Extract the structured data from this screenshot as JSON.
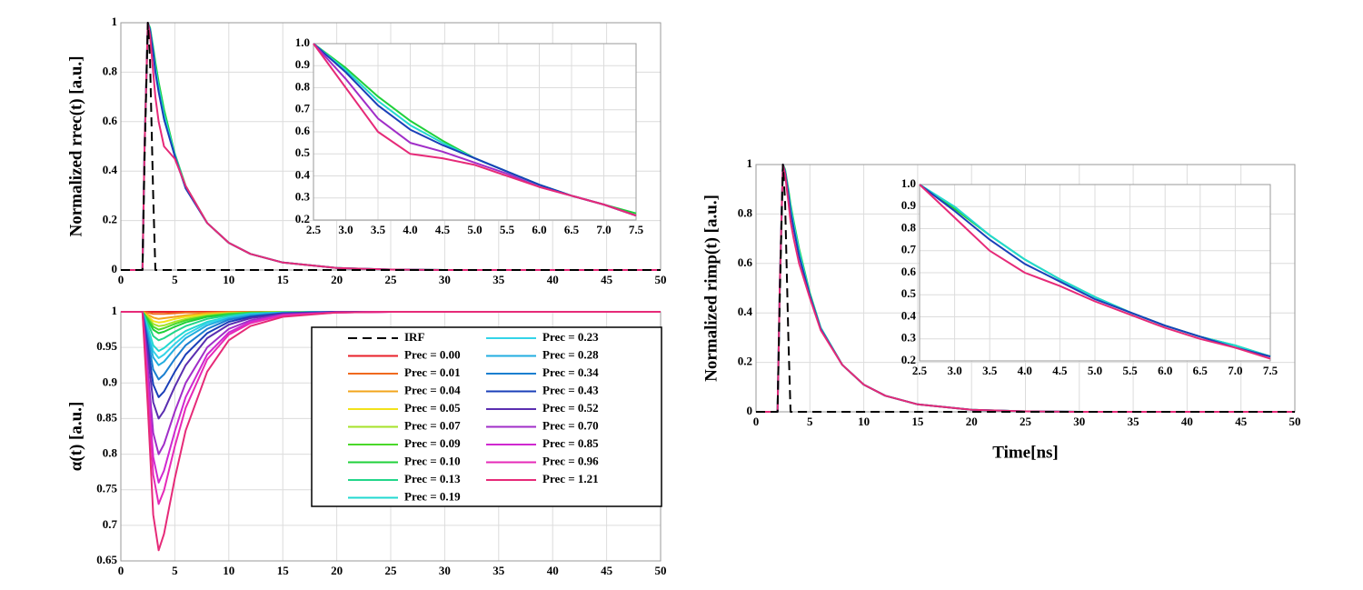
{
  "chart_data": [
    {
      "type": "line",
      "ylabel": "Normalized rrec(t) [a.u.]",
      "grid": true,
      "xlim": [
        0,
        50
      ],
      "xticks": [
        0,
        5,
        10,
        15,
        20,
        25,
        30,
        35,
        40,
        45,
        50
      ],
      "ylim": [
        0,
        1
      ],
      "yticks": [
        0,
        0.2,
        0.4,
        0.6,
        0.8,
        1
      ],
      "x": [
        0,
        2,
        2.2,
        2.5,
        2.7,
        3,
        3.2,
        3.5,
        4,
        5,
        6,
        8,
        10,
        12,
        15,
        20,
        25,
        30,
        50
      ],
      "series": [
        {
          "color": "#1fd03a",
          "values": [
            0,
            0,
            0.5,
            1,
            0.98,
            0.9,
            0.84,
            0.76,
            0.65,
            0.47,
            0.34,
            0.19,
            0.11,
            0.065,
            0.03,
            0.008,
            0.002,
            0,
            0
          ]
        },
        {
          "color": "#22d8d0",
          "values": [
            0,
            0,
            0.5,
            1,
            0.975,
            0.89,
            0.82,
            0.74,
            0.63,
            0.465,
            0.335,
            0.19,
            0.11,
            0.065,
            0.03,
            0.008,
            0.002,
            0,
            0
          ]
        },
        {
          "color": "#1a3fb8",
          "values": [
            0,
            0,
            0.5,
            1,
            0.97,
            0.88,
            0.8,
            0.72,
            0.61,
            0.46,
            0.33,
            0.19,
            0.11,
            0.065,
            0.03,
            0.008,
            0.002,
            0,
            0
          ]
        },
        {
          "color": "#e62a78",
          "values": [
            0,
            0,
            0.5,
            1,
            0.95,
            0.8,
            0.7,
            0.6,
            0.5,
            0.45,
            0.34,
            0.19,
            0.11,
            0.065,
            0.03,
            0.008,
            0.002,
            0,
            0
          ]
        },
        {
          "color": "#000000",
          "dash": true,
          "values": [
            0,
            0,
            0.45,
            1,
            0.85,
            0.3,
            0,
            0,
            0,
            0,
            0,
            0,
            0,
            0,
            0,
            0,
            0,
            0,
            0
          ]
        }
      ]
    },
    {
      "type": "line",
      "grid": true,
      "xlim": [
        2.5,
        7.5
      ],
      "xticks": [
        2.5,
        {
          "value": 3,
          "label": "3.0"
        },
        3.5,
        {
          "value": 4,
          "label": "4.0"
        },
        4.5,
        {
          "value": 5,
          "label": "5.0"
        },
        5.5,
        {
          "value": 6,
          "label": "6.0"
        },
        6.5,
        {
          "value": 7,
          "label": "7.0"
        },
        7.5
      ],
      "ylim": [
        0.2,
        1
      ],
      "yticks": [
        0.2,
        0.3,
        0.4,
        0.5,
        0.6,
        0.7,
        0.8,
        0.9,
        {
          "value": 1,
          "label": "1.0"
        }
      ],
      "x": [
        2.5,
        3,
        3.5,
        4,
        4.5,
        5,
        5.5,
        6,
        6.5,
        7,
        7.5
      ],
      "series": [
        {
          "color": "#1fd03a",
          "values": [
            1,
            0.89,
            0.76,
            0.65,
            0.56,
            0.48,
            0.42,
            0.36,
            0.31,
            0.27,
            0.23
          ]
        },
        {
          "color": "#22d8d0",
          "values": [
            1,
            0.88,
            0.74,
            0.63,
            0.55,
            0.48,
            0.42,
            0.36,
            0.31,
            0.27,
            0.22
          ]
        },
        {
          "color": "#1a3fb8",
          "values": [
            1,
            0.87,
            0.72,
            0.61,
            0.54,
            0.48,
            0.42,
            0.36,
            0.31,
            0.27,
            0.22
          ]
        },
        {
          "color": "#a02ec8",
          "values": [
            1,
            0.84,
            0.66,
            0.55,
            0.51,
            0.46,
            0.41,
            0.35,
            0.31,
            0.27,
            0.22
          ]
        },
        {
          "color": "#e62a78",
          "values": [
            1,
            0.8,
            0.6,
            0.5,
            0.48,
            0.45,
            0.4,
            0.35,
            0.31,
            0.27,
            0.22
          ]
        }
      ]
    },
    {
      "type": "line",
      "ylabel": "α(t) [a.u.]",
      "grid": true,
      "legend": "right",
      "xlim": [
        0,
        50
      ],
      "xticks": [
        0,
        5,
        10,
        15,
        20,
        25,
        30,
        35,
        40,
        45,
        50
      ],
      "ylim": [
        0.65,
        1
      ],
      "yticks": [
        0.65,
        0.7,
        0.75,
        0.8,
        0.85,
        0.9,
        0.95,
        1
      ],
      "x": [
        0,
        2,
        2.5,
        3,
        3.5,
        4,
        5,
        6,
        8,
        10,
        12,
        15,
        20,
        25,
        50
      ],
      "series": [
        {
          "name": "IRF",
          "color": "#000000",
          "dash": true,
          "values": [
            null,
            null,
            null,
            null,
            null,
            null,
            null,
            null,
            null,
            null,
            null,
            null,
            null,
            null,
            null
          ]
        },
        {
          "name": "Prec = 0.00",
          "color": "#e8202a",
          "values": [
            1,
            1,
            1,
            1,
            1,
            1,
            1,
            1,
            1,
            1,
            1,
            1,
            1,
            1,
            1
          ]
        },
        {
          "name": "Prec = 0.01",
          "color": "#f06a1f",
          "values": [
            1,
            1,
            0.999,
            0.997,
            0.997,
            0.997,
            0.998,
            0.999,
            0.999,
            1,
            1,
            1,
            1,
            1,
            1
          ]
        },
        {
          "name": "Prec = 0.04",
          "color": "#f2a51c",
          "values": [
            1,
            1,
            0.996,
            0.992,
            0.99,
            0.991,
            0.993,
            0.995,
            0.998,
            0.999,
            0.999,
            1,
            1,
            1,
            1
          ]
        },
        {
          "name": "Prec = 0.05",
          "color": "#f2e21a",
          "values": [
            1,
            1,
            0.994,
            0.987,
            0.985,
            0.986,
            0.99,
            0.993,
            0.996,
            0.998,
            0.999,
            1,
            1,
            1,
            1
          ]
        },
        {
          "name": "Prec = 0.07",
          "color": "#a6e22a",
          "values": [
            1,
            1,
            0.992,
            0.983,
            0.98,
            0.981,
            0.986,
            0.99,
            0.995,
            0.998,
            0.999,
            1,
            1,
            1,
            1
          ]
        },
        {
          "name": "Prec = 0.09",
          "color": "#4ad82a",
          "values": [
            1,
            1,
            0.99,
            0.979,
            0.975,
            0.977,
            0.983,
            0.988,
            0.994,
            0.997,
            0.999,
            0.999,
            1,
            1,
            1
          ]
        },
        {
          "name": "Prec = 0.10",
          "color": "#1fd03a",
          "values": [
            1,
            1,
            0.988,
            0.975,
            0.97,
            0.972,
            0.979,
            0.985,
            0.993,
            0.996,
            0.998,
            0.999,
            1,
            1,
            1
          ]
        },
        {
          "name": "Prec = 0.13",
          "color": "#22d68a",
          "values": [
            1,
            1,
            0.984,
            0.966,
            0.96,
            0.963,
            0.972,
            0.98,
            0.99,
            0.995,
            0.998,
            0.999,
            1,
            1,
            1
          ]
        },
        {
          "name": "Prec = 0.19",
          "color": "#22d8d0",
          "values": [
            1,
            1,
            0.978,
            0.953,
            0.945,
            0.949,
            0.962,
            0.973,
            0.986,
            0.993,
            0.997,
            0.999,
            1,
            1,
            1
          ]
        },
        {
          "name": "Prec = 0.23",
          "color": "#33d4e8",
          "values": [
            1,
            1,
            0.974,
            0.945,
            0.935,
            0.94,
            0.955,
            0.968,
            0.984,
            0.992,
            0.996,
            0.999,
            1,
            1,
            1
          ]
        },
        {
          "name": "Prec = 0.28",
          "color": "#22aee0",
          "values": [
            1,
            1,
            0.97,
            0.936,
            0.925,
            0.93,
            0.948,
            0.963,
            0.981,
            0.991,
            0.996,
            0.999,
            1,
            1,
            1
          ]
        },
        {
          "name": "Prec = 0.34",
          "color": "#1a7fd0",
          "values": [
            1,
            1,
            0.962,
            0.919,
            0.905,
            0.912,
            0.934,
            0.953,
            0.976,
            0.989,
            0.994,
            0.998,
            1,
            1,
            1
          ]
        },
        {
          "name": "Prec = 0.43",
          "color": "#1a3fb8",
          "values": [
            1,
            1,
            0.952,
            0.898,
            0.88,
            0.888,
            0.916,
            0.94,
            0.97,
            0.986,
            0.993,
            0.998,
            1,
            1,
            1
          ]
        },
        {
          "name": "Prec = 0.52",
          "color": "#5a2eb0",
          "values": [
            1,
            1,
            0.94,
            0.873,
            0.85,
            0.861,
            0.895,
            0.925,
            0.963,
            0.982,
            0.991,
            0.997,
            1,
            1,
            1
          ]
        },
        {
          "name": "Prec = 0.70",
          "color": "#a02ec8",
          "values": [
            1,
            1,
            0.92,
            0.83,
            0.8,
            0.814,
            0.86,
            0.9,
            0.95,
            0.976,
            0.988,
            0.996,
            0.999,
            1,
            1
          ]
        },
        {
          "name": "Prec = 0.85",
          "color": "#d028d0",
          "values": [
            1,
            1,
            0.904,
            0.796,
            0.76,
            0.777,
            0.832,
            0.88,
            0.94,
            0.971,
            0.986,
            0.995,
            0.999,
            1,
            1
          ]
        },
        {
          "name": "Prec = 0.96",
          "color": "#e62ab8",
          "values": [
            1,
            1,
            0.892,
            0.771,
            0.73,
            0.749,
            0.811,
            0.865,
            0.933,
            0.968,
            0.984,
            0.995,
            0.999,
            1,
            1
          ]
        },
        {
          "name": "Prec = 1.21",
          "color": "#e62a78",
          "values": [
            1,
            1,
            0.866,
            0.715,
            0.665,
            0.688,
            0.766,
            0.833,
            0.916,
            0.96,
            0.98,
            0.993,
            0.999,
            1,
            1
          ]
        }
      ]
    },
    {
      "type": "line",
      "ylabel": "Normalized rimp(t) [a.u.]",
      "xlabel": "Time[ns]",
      "grid": true,
      "xlim": [
        0,
        50
      ],
      "xticks": [
        0,
        5,
        10,
        15,
        20,
        25,
        30,
        35,
        40,
        45,
        50
      ],
      "ylim": [
        0,
        1
      ],
      "yticks": [
        0,
        0.2,
        0.4,
        0.6,
        0.8,
        1
      ],
      "x": [
        0,
        2,
        2.2,
        2.5,
        2.7,
        3,
        3.2,
        3.5,
        4,
        5,
        6,
        8,
        10,
        12,
        15,
        20,
        25,
        30,
        50
      ],
      "series": [
        {
          "color": "#1fd03a",
          "values": [
            0,
            0,
            0.5,
            1,
            0.98,
            0.9,
            0.84,
            0.77,
            0.66,
            0.48,
            0.34,
            0.19,
            0.11,
            0.065,
            0.03,
            0.008,
            0.002,
            0,
            0
          ]
        },
        {
          "color": "#22d8d0",
          "values": [
            0,
            0,
            0.5,
            1,
            0.975,
            0.89,
            0.83,
            0.76,
            0.65,
            0.475,
            0.34,
            0.19,
            0.11,
            0.065,
            0.03,
            0.008,
            0.002,
            0,
            0
          ]
        },
        {
          "color": "#1a3fb8",
          "values": [
            0,
            0,
            0.5,
            1,
            0.97,
            0.88,
            0.81,
            0.74,
            0.63,
            0.47,
            0.335,
            0.19,
            0.11,
            0.065,
            0.03,
            0.008,
            0.002,
            0,
            0
          ]
        },
        {
          "color": "#e62a78",
          "values": [
            0,
            0,
            0.5,
            1,
            0.96,
            0.85,
            0.77,
            0.7,
            0.6,
            0.46,
            0.33,
            0.19,
            0.11,
            0.065,
            0.03,
            0.008,
            0.002,
            0,
            0
          ]
        },
        {
          "color": "#000000",
          "dash": true,
          "values": [
            0,
            0,
            0.45,
            1,
            0.85,
            0.3,
            0,
            0,
            0,
            0,
            0,
            0,
            0,
            0,
            0,
            0,
            0,
            0,
            0
          ]
        }
      ]
    },
    {
      "type": "line",
      "grid": true,
      "xlim": [
        2.5,
        7.5
      ],
      "xticks": [
        2.5,
        {
          "value": 3,
          "label": "3.0"
        },
        3.5,
        {
          "value": 4,
          "label": "4.0"
        },
        4.5,
        {
          "value": 5,
          "label": "5.0"
        },
        5.5,
        {
          "value": 6,
          "label": "6.0"
        },
        6.5,
        {
          "value": 7,
          "label": "7.0"
        },
        7.5
      ],
      "ylim": [
        0.2,
        1
      ],
      "yticks": [
        0.2,
        0.3,
        0.4,
        0.5,
        0.6,
        0.7,
        0.8,
        0.9,
        {
          "value": 1,
          "label": "1.0"
        }
      ],
      "x": [
        2.5,
        3,
        3.5,
        4,
        4.5,
        5,
        5.5,
        6,
        6.5,
        7,
        7.5
      ],
      "series": [
        {
          "color": "#1fd03a",
          "values": [
            1,
            0.89,
            0.77,
            0.66,
            0.57,
            0.49,
            0.42,
            0.36,
            0.31,
            0.27,
            0.22
          ]
        },
        {
          "color": "#22d8d0",
          "values": [
            1,
            0.9,
            0.77,
            0.66,
            0.57,
            0.49,
            0.42,
            0.36,
            0.31,
            0.27,
            0.22
          ]
        },
        {
          "color": "#1a3fb8",
          "values": [
            1,
            0.88,
            0.75,
            0.64,
            0.56,
            0.48,
            0.42,
            0.36,
            0.31,
            0.26,
            0.22
          ]
        },
        {
          "color": "#e62a78",
          "values": [
            1,
            0.85,
            0.7,
            0.6,
            0.54,
            0.47,
            0.41,
            0.35,
            0.3,
            0.26,
            0.21
          ]
        }
      ]
    }
  ]
}
